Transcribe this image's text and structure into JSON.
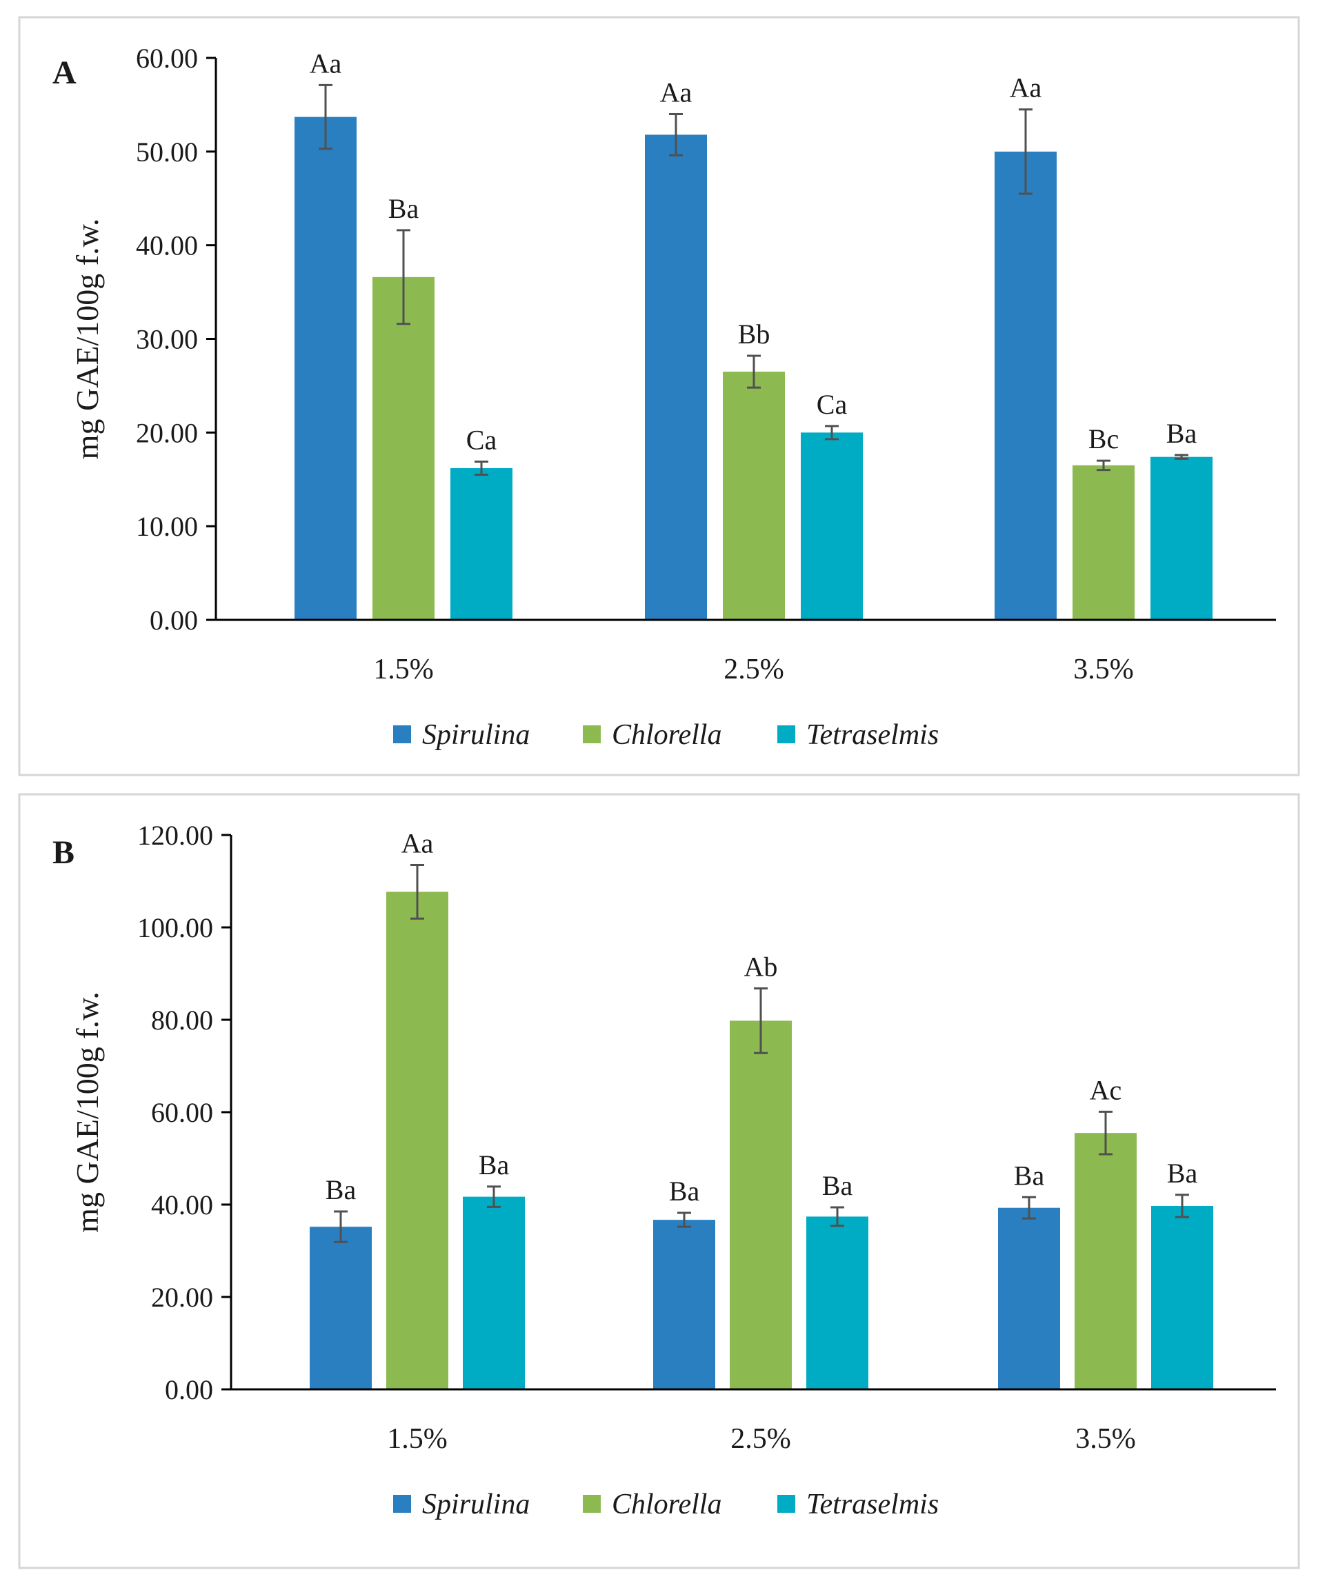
{
  "chart_data": [
    {
      "panel": "A",
      "type": "bar",
      "ylabel": "mg GAE/100g f.w.",
      "ylim": [
        0,
        60
      ],
      "yticks": [
        "0.00",
        "10.00",
        "20.00",
        "30.00",
        "40.00",
        "50.00",
        "60.00"
      ],
      "categories": [
        "1.5%",
        "2.5%",
        "3.5%"
      ],
      "series": [
        {
          "name": "Spirulina",
          "color": "#2a7fc1",
          "values": [
            53.7,
            51.8,
            50.0
          ],
          "errors": [
            3.4,
            2.2,
            4.5
          ],
          "labels": [
            "Aa",
            "Aa",
            "Aa"
          ]
        },
        {
          "name": "Chlorella",
          "color": "#8cba50",
          "values": [
            36.6,
            26.5,
            16.5
          ],
          "errors": [
            5.0,
            1.7,
            0.5
          ],
          "labels": [
            "Ba",
            "Bb",
            "Bc"
          ]
        },
        {
          "name": "Tetraselmis",
          "color": "#00acc4",
          "values": [
            16.2,
            20.0,
            17.4
          ],
          "errors": [
            0.7,
            0.7,
            0.2
          ],
          "labels": [
            "Ca",
            "Ca",
            "Ba"
          ]
        }
      ],
      "legend_position": "bottom"
    },
    {
      "panel": "B",
      "type": "bar",
      "ylabel": "mg GAE/100g f.w.",
      "ylim": [
        0,
        120
      ],
      "yticks": [
        "0.00",
        "20.00",
        "40.00",
        "60.00",
        "80.00",
        "100.00",
        "120.00"
      ],
      "categories": [
        "1.5%",
        "2.5%",
        "3.5%"
      ],
      "series": [
        {
          "name": "Spirulina",
          "color": "#2a7fc1",
          "values": [
            35.2,
            36.7,
            39.3
          ],
          "errors": [
            3.3,
            1.5,
            2.3
          ],
          "labels": [
            "Ba",
            "Ba",
            "Ba"
          ]
        },
        {
          "name": "Chlorella",
          "color": "#8cba50",
          "values": [
            107.7,
            79.8,
            55.5
          ],
          "errors": [
            5.8,
            7.0,
            4.6
          ],
          "labels": [
            "Aa",
            "Ab",
            "Ac"
          ]
        },
        {
          "name": "Tetraselmis",
          "color": "#00acc4",
          "values": [
            41.7,
            37.4,
            39.7
          ],
          "errors": [
            2.2,
            2.0,
            2.4
          ],
          "labels": [
            "Ba",
            "Ba",
            "Ba"
          ]
        }
      ],
      "legend_position": "bottom"
    }
  ]
}
